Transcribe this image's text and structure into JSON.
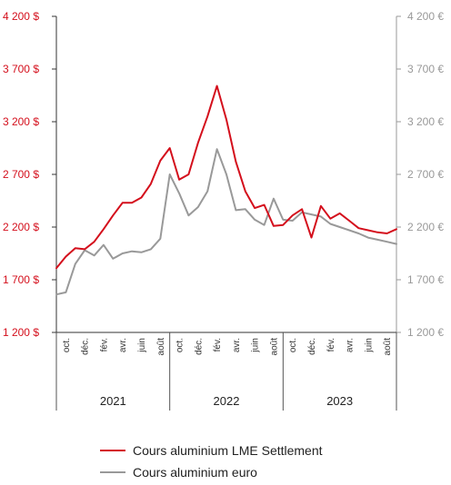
{
  "chart_data": {
    "type": "line",
    "title": "",
    "xlabel": "",
    "ylabel": "",
    "y_left": {
      "min": 1200,
      "max": 4200,
      "ticks": [
        1200,
        1700,
        2200,
        2700,
        3200,
        3700,
        4200
      ],
      "tick_labels": [
        "1 200 $",
        "1 700 $",
        "2 200 $",
        "2 700 $",
        "3 200 $",
        "3 700 $",
        "4 200 $"
      ],
      "color": "#d40f1c"
    },
    "y_right": {
      "min": 1200,
      "max": 4200,
      "ticks": [
        1200,
        1700,
        2200,
        2700,
        3200,
        3700,
        4200
      ],
      "tick_labels": [
        "1 200 €",
        "1 700 €",
        "2 200 €",
        "2 700 €",
        "3 200 €",
        "3 700 €",
        "4 200 €"
      ],
      "color": "#999999"
    },
    "x": [
      "2021-09",
      "2021-10",
      "2021-11",
      "2021-12",
      "2022-01",
      "2022-02",
      "2022-03",
      "2022-04",
      "2022-05",
      "2022-06",
      "2022-07",
      "2022-08",
      "2022-09",
      "2022-10",
      "2022-11",
      "2022-12",
      "2023-01",
      "2023-02",
      "2023-03",
      "2023-04",
      "2023-05",
      "2023-06",
      "2023-07",
      "2023-08",
      "2023-09",
      "2023-10",
      "2023-11",
      "2023-12",
      "2024-01",
      "2024-02",
      "2024-03",
      "2024-04",
      "2024-05",
      "2024-06",
      "2024-07",
      "2024-08",
      "2024-09"
    ],
    "month_labels": [
      {
        "label": "oct.",
        "at": "2021-10"
      },
      {
        "label": "déc.",
        "at": "2021-12"
      },
      {
        "label": "fév.",
        "at": "2022-02"
      },
      {
        "label": "avr.",
        "at": "2022-04"
      },
      {
        "label": "juin",
        "at": "2022-06"
      },
      {
        "label": "août",
        "at": "2022-08"
      },
      {
        "label": "oct.",
        "at": "2022-10"
      },
      {
        "label": "déc.",
        "at": "2022-12"
      },
      {
        "label": "fév.",
        "at": "2023-02"
      },
      {
        "label": "avr.",
        "at": "2023-04"
      },
      {
        "label": "juin",
        "at": "2023-06"
      },
      {
        "label": "août",
        "at": "2023-08"
      },
      {
        "label": "oct.",
        "at": "2023-10"
      },
      {
        "label": "déc.",
        "at": "2023-12"
      },
      {
        "label": "fév.",
        "at": "2024-02"
      },
      {
        "label": "avr.",
        "at": "2024-04"
      },
      {
        "label": "juin",
        "at": "2024-06"
      },
      {
        "label": "août",
        "at": "2024-08"
      }
    ],
    "year_groups": [
      {
        "label": "2021",
        "from": "2021-09",
        "to": "2022-09"
      },
      {
        "label": "2022",
        "from": "2022-09",
        "to": "2023-09"
      },
      {
        "label": "2023",
        "from": "2023-09",
        "to": "2024-09"
      }
    ],
    "series": [
      {
        "name": "Cours aluminium LME Settlement",
        "color": "#d40f1c",
        "values": [
          1810,
          1920,
          2000,
          1990,
          2060,
          2180,
          2310,
          2430,
          2430,
          2480,
          2610,
          2830,
          2950,
          2650,
          2700,
          3000,
          3250,
          3540,
          3220,
          2820,
          2540,
          2380,
          2410,
          2210,
          2220,
          2310,
          2370,
          2100,
          2400,
          2280,
          2330,
          2260,
          2190,
          2170,
          2150,
          2140,
          2180
        ]
      },
      {
        "name": "Cours aluminium euro",
        "color": "#999999",
        "values": [
          1560,
          1580,
          1850,
          1980,
          1930,
          2030,
          1900,
          1950,
          1970,
          1960,
          1990,
          2090,
          2700,
          2520,
          2310,
          2390,
          2540,
          2940,
          2700,
          2360,
          2370,
          2270,
          2220,
          2470,
          2270,
          2260,
          2340,
          2320,
          2300,
          2230,
          2200,
          2170,
          2140,
          2100,
          2080,
          2060,
          2040
        ]
      }
    ],
    "legend_position": "bottom",
    "grid": false
  }
}
